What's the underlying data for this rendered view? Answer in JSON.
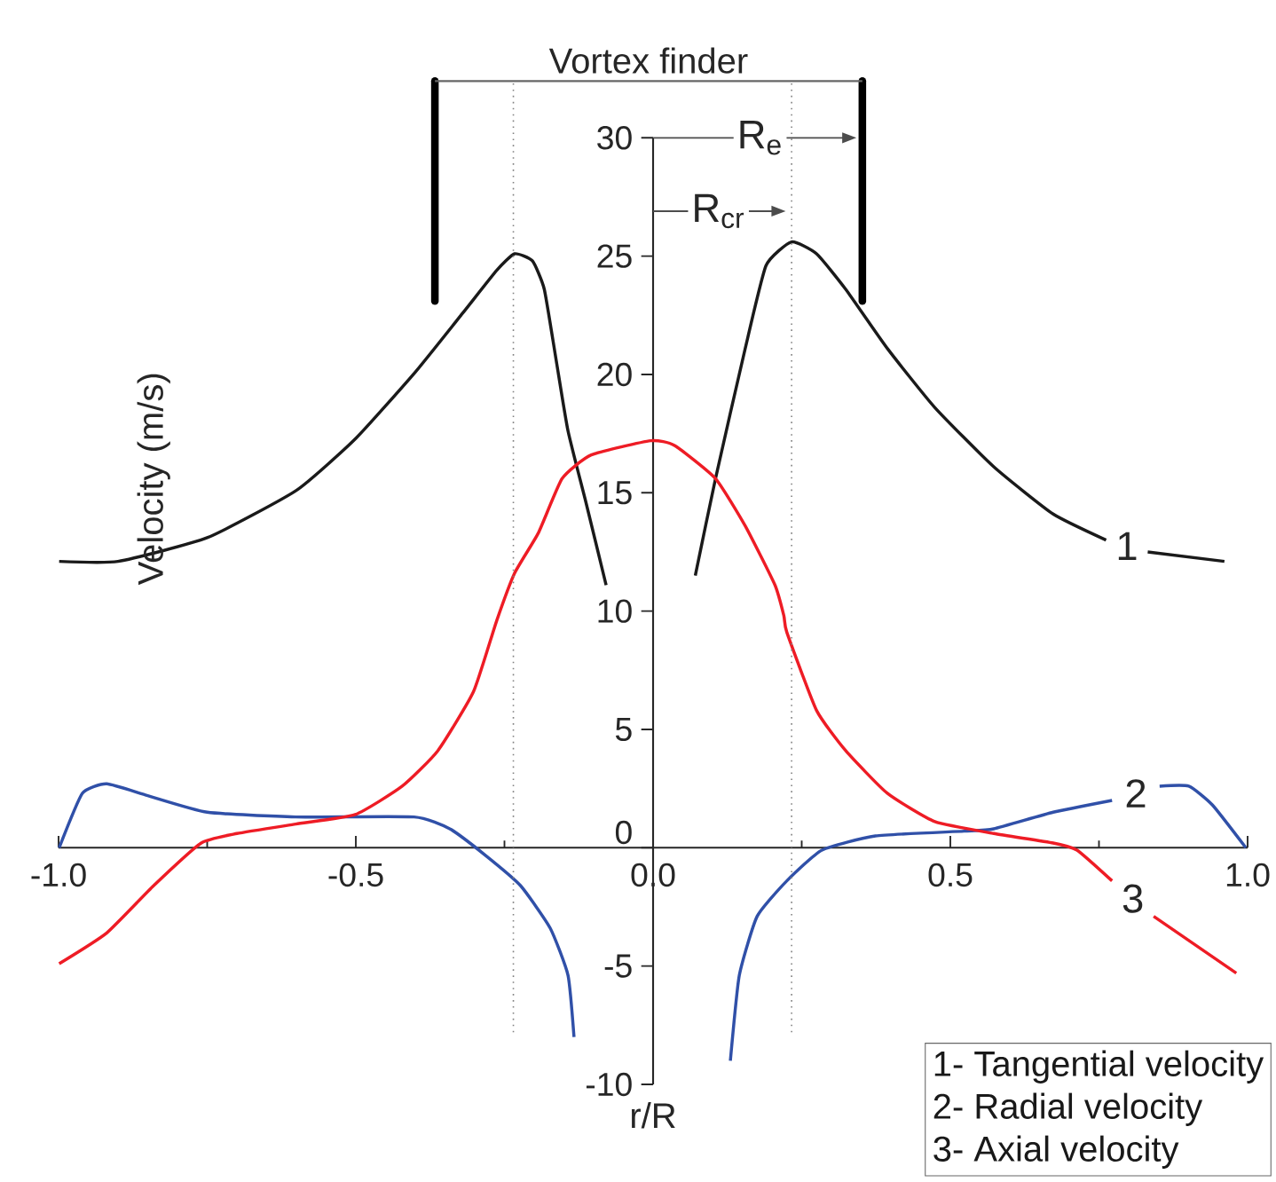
{
  "chart_data": {
    "type": "line",
    "xlabel": "r/R",
    "ylabel": "Velocity (m/s)",
    "xlim": [
      -1.0,
      1.0
    ],
    "ylim": [
      -10,
      30
    ],
    "xticks": [
      {
        "value": -1.0,
        "label": "-1.0"
      },
      {
        "value": -0.5,
        "label": "-0.5"
      },
      {
        "value": 0.0,
        "label": "0.0"
      },
      {
        "value": 0.5,
        "label": "0.5"
      },
      {
        "value": 1.0,
        "label": "1.0"
      }
    ],
    "yticks": [
      -10,
      -5,
      0,
      5,
      10,
      15,
      20,
      25,
      30
    ],
    "series": [
      {
        "name": "1",
        "color": "#1a1a1a",
        "x": [
          -0.999,
          -0.9,
          -0.75,
          -0.6,
          -0.5,
          -0.4,
          -0.32,
          -0.263,
          -0.233,
          -0.203,
          -0.183,
          -0.163,
          -0.143,
          -0.113,
          -0.079,
          null,
          0.071,
          0.105,
          0.155,
          0.19,
          0.233,
          0.275,
          0.324,
          0.394,
          0.474,
          0.573,
          0.673,
          0.762,
          null,
          0.832,
          0.961
        ],
        "values": [
          12.1,
          12.1,
          13.1,
          15.1,
          17.3,
          20.1,
          22.6,
          24.4,
          25.1,
          24.8,
          23.6,
          20.6,
          17.6,
          14.6,
          11.1,
          null,
          11.5,
          15.6,
          21.1,
          24.6,
          25.6,
          25.1,
          23.6,
          21.1,
          18.6,
          16.1,
          14.1,
          13.0,
          null,
          12.5,
          12.1
        ]
      },
      {
        "name": "2",
        "color": "#3050a8",
        "x": [
          -0.999,
          -0.96,
          -0.919,
          -0.85,
          -0.75,
          -0.601,
          -0.402,
          -0.342,
          -0.283,
          -0.223,
          -0.173,
          -0.143,
          -0.133,
          null,
          0.13,
          0.145,
          0.175,
          0.225,
          0.284,
          0.374,
          0.523,
          0.573,
          0.673,
          0.772,
          null,
          0.852,
          0.901,
          0.941,
          0.997
        ],
        "values": [
          0.0,
          2.3,
          2.7,
          2.2,
          1.5,
          1.3,
          1.3,
          0.8,
          -0.3,
          -1.6,
          -3.4,
          -5.4,
          -8.0,
          null,
          -9.0,
          -5.4,
          -2.9,
          -1.4,
          -0.1,
          0.5,
          0.7,
          0.8,
          1.5,
          2.0,
          null,
          2.6,
          2.6,
          1.8,
          0.0
        ]
      },
      {
        "name": "3",
        "color": "#ee1c25",
        "x": [
          -0.999,
          -0.919,
          -0.84,
          -0.76,
          -0.7,
          -0.601,
          -0.501,
          -0.422,
          -0.362,
          -0.302,
          -0.263,
          -0.233,
          -0.193,
          -0.153,
          -0.104,
          -0.004,
          0.036,
          0.105,
          0.155,
          0.205,
          0.22,
          0.225,
          0.275,
          0.324,
          0.394,
          0.474,
          0.573,
          0.673,
          0.713,
          0.772,
          null,
          0.842,
          0.981
        ],
        "values": [
          -4.9,
          -3.6,
          -1.6,
          0.2,
          0.6,
          1.0,
          1.4,
          2.6,
          4.1,
          6.6,
          9.6,
          11.6,
          13.3,
          15.6,
          16.6,
          17.2,
          17.0,
          15.6,
          13.6,
          11.1,
          9.8,
          9.1,
          5.8,
          4.1,
          2.3,
          1.1,
          0.6,
          0.2,
          -0.1,
          -1.4,
          null,
          -2.9,
          -5.3
        ]
      }
    ],
    "ref_lines": [
      {
        "axis": "x",
        "value": -0.235,
        "line_style": "dotted",
        "color": "#808080"
      },
      {
        "axis": "x",
        "value": 0.233,
        "line_style": "dotted",
        "color": "#808080"
      },
      {
        "axis": "x",
        "value": -0.367,
        "line_style": "solid",
        "color": "#000000"
      },
      {
        "axis": "x",
        "value": 0.352,
        "line_style": "solid",
        "color": "#000000"
      }
    ],
    "annotations": [
      "Vortex finder",
      {
        "text": "R$_{e}$",
        "x": 0.18,
        "y": 30
      },
      {
        "text": "R$_{cr}$",
        "x": 0.11,
        "y": 26.9
      },
      "1- Tangential velocity",
      "2- Radial velocity",
      "3- Axial velocity"
    ]
  }
}
